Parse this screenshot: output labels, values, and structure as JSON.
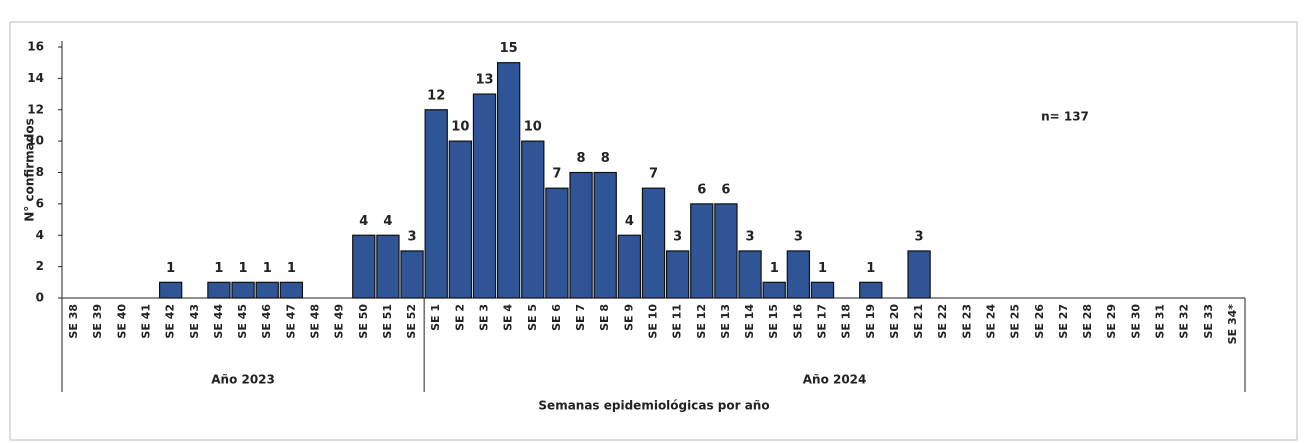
{
  "chart_data": {
    "type": "bar",
    "y_label": "N° confirmados",
    "x_label": "Semanas epidemiológicas por año",
    "annotation": "n= 137",
    "color": "#2f5597",
    "ylim": [
      0,
      16
    ],
    "yticks": [
      0,
      2,
      4,
      6,
      8,
      10,
      12,
      14,
      16
    ],
    "groups": [
      {
        "name": "Año 2023",
        "categories": [
          "SE 38",
          "SE 39",
          "SE 40",
          "SE 41",
          "SE 42",
          "SE 43",
          "SE 44",
          "SE 45",
          "SE 46",
          "SE 47",
          "SE 48",
          "SE 49",
          "SE 50",
          "SE 51",
          "SE 52"
        ],
        "values": [
          0,
          0,
          0,
          0,
          1,
          0,
          1,
          1,
          1,
          1,
          0,
          0,
          4,
          4,
          3
        ]
      },
      {
        "name": "Año 2024",
        "categories": [
          "SE 1",
          "SE 2",
          "SE 3",
          "SE 4",
          "SE 5",
          "SE 6",
          "SE 7",
          "SE 8",
          "SE 9",
          "SE 10",
          "SE 11",
          "SE 12",
          "SE 13",
          "SE 14",
          "SE 15",
          "SE 16",
          "SE 17",
          "SE 18",
          "SE 19",
          "SE 20",
          "SE 21",
          "SE 22",
          "SE 23",
          "SE 24",
          "SE 25",
          "SE 26",
          "SE 27",
          "SE 28",
          "SE 29",
          "SE 30",
          "SE 31",
          "SE 32",
          "SE 33",
          "SE 34*"
        ],
        "values": [
          12,
          10,
          13,
          15,
          10,
          7,
          8,
          8,
          4,
          7,
          3,
          6,
          6,
          3,
          1,
          3,
          1,
          0,
          1,
          0,
          3,
          0,
          0,
          0,
          0,
          0,
          0,
          0,
          0,
          0,
          0,
          0,
          0,
          0
        ]
      }
    ]
  }
}
